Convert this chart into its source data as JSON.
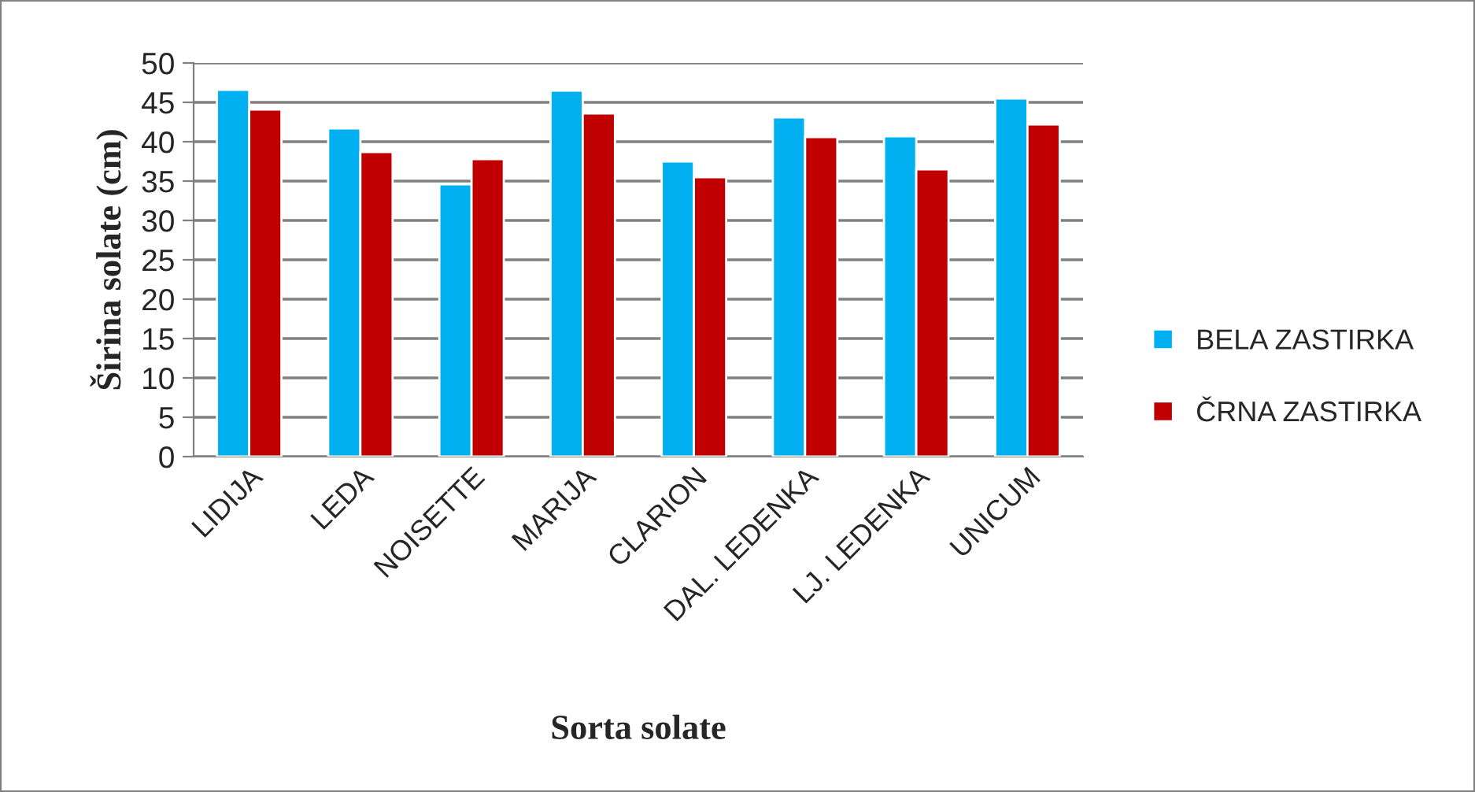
{
  "chart_data": {
    "type": "bar",
    "xlabel": "Sorta solate",
    "ylabel": "Širina solate (cm)",
    "categories": [
      "LIDIJA",
      "LEDA",
      "NOISETTE",
      "MARIJA",
      "CLARION",
      "DAL. LEDENKA",
      "LJ. LEDENKA",
      "UNICUM"
    ],
    "series": [
      {
        "name": "BELA ZASTIRKA",
        "color": "#00b0f0",
        "values": [
          46.6,
          41.7,
          34.6,
          46.5,
          37.5,
          43.1,
          40.7,
          45.5
        ]
      },
      {
        "name": "ČRNA ZASTIRKA",
        "color": "#c00000",
        "values": [
          44.1,
          38.7,
          37.8,
          43.6,
          35.5,
          40.6,
          36.5,
          42.2
        ]
      }
    ],
    "ylim": [
      0,
      50
    ],
    "yticks": [
      0,
      5,
      10,
      15,
      20,
      25,
      30,
      35,
      40,
      45,
      50
    ],
    "grid": "y",
    "legend": "right"
  }
}
